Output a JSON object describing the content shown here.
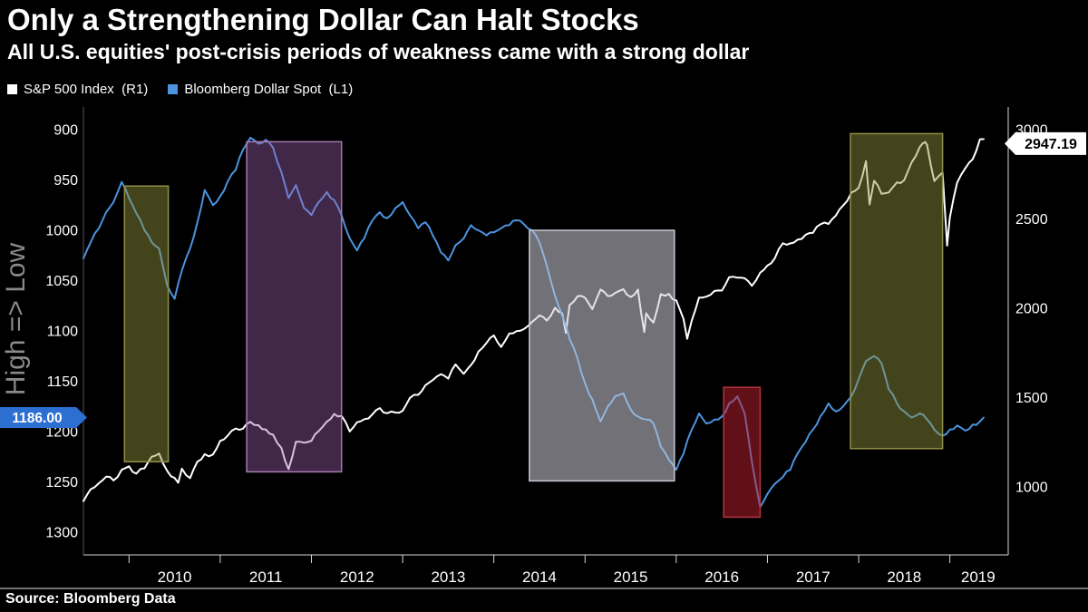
{
  "header": {
    "title": "Only a Strengthening Dollar Can Halt Stocks",
    "subtitle": "All U.S. equities' post-crisis periods of weakness came with a strong dollar"
  },
  "legend": {
    "items": [
      {
        "label": "S&P 500 Index  (R1)",
        "color": "#ffffff"
      },
      {
        "label": "Bloomberg Dollar Spot  (L1)",
        "color": "#4a94e0"
      }
    ]
  },
  "source": "Source: Bloomberg Data",
  "chart_data": {
    "type": "line",
    "title": "Only a Strengthening Dollar Can Halt Stocks",
    "subtitle": "All U.S. equities' post-crisis periods of weakness came with a strong dollar",
    "background": "#000000",
    "grid": false,
    "legend_position": "top-left",
    "x_domain": [
      2009.5,
      2019.62
    ],
    "x_tick_years": [
      2010,
      2011,
      2012,
      2013,
      2014,
      2015,
      2016,
      2017,
      2018,
      2019
    ],
    "left_axis": {
      "series": "Bloomberg Dollar Spot (L1)",
      "label": "High => Low",
      "inverted": true,
      "domain": [
        900,
        1300
      ],
      "ticks": [
        900,
        950,
        1000,
        1050,
        1100,
        1150,
        1200,
        1250,
        1300
      ],
      "badge": {
        "value": "1186.00",
        "bg": "#2d6fd1",
        "fg": "#ffffff"
      }
    },
    "right_axis": {
      "series": "S&P 500 Index (R1)",
      "domain": [
        1000,
        3000
      ],
      "ticks": [
        3000,
        2500,
        2000,
        1500,
        1000
      ],
      "badge": {
        "value": "2947.19",
        "bg": "#ffffff",
        "fg": "#000000"
      }
    },
    "series": [
      {
        "name": "S&P 500 Index (R1)",
        "axis": "right",
        "color": "#ffffff",
        "points": [
          [
            2009.5,
            920
          ],
          [
            2009.58,
            987
          ],
          [
            2009.67,
            1021
          ],
          [
            2009.75,
            1057
          ],
          [
            2009.83,
            1036
          ],
          [
            2009.92,
            1096
          ],
          [
            2010.0,
            1115
          ],
          [
            2010.08,
            1074
          ],
          [
            2010.17,
            1104
          ],
          [
            2010.25,
            1169
          ],
          [
            2010.33,
            1187
          ],
          [
            2010.42,
            1089
          ],
          [
            2010.54,
            1023
          ],
          [
            2010.58,
            1102
          ],
          [
            2010.67,
            1049
          ],
          [
            2010.75,
            1141
          ],
          [
            2010.83,
            1183
          ],
          [
            2010.92,
            1181
          ],
          [
            2011.0,
            1258
          ],
          [
            2011.08,
            1286
          ],
          [
            2011.17,
            1327
          ],
          [
            2011.25,
            1326
          ],
          [
            2011.33,
            1364
          ],
          [
            2011.42,
            1345
          ],
          [
            2011.5,
            1321
          ],
          [
            2011.58,
            1292
          ],
          [
            2011.67,
            1219
          ],
          [
            2011.75,
            1099
          ],
          [
            2011.83,
            1253
          ],
          [
            2011.92,
            1247
          ],
          [
            2012.0,
            1258
          ],
          [
            2012.08,
            1312
          ],
          [
            2012.17,
            1366
          ],
          [
            2012.25,
            1408
          ],
          [
            2012.33,
            1398
          ],
          [
            2012.42,
            1310
          ],
          [
            2012.5,
            1362
          ],
          [
            2012.58,
            1379
          ],
          [
            2012.67,
            1407
          ],
          [
            2012.75,
            1441
          ],
          [
            2012.83,
            1412
          ],
          [
            2012.92,
            1416
          ],
          [
            2013.0,
            1426
          ],
          [
            2013.08,
            1498
          ],
          [
            2013.17,
            1515
          ],
          [
            2013.25,
            1569
          ],
          [
            2013.33,
            1598
          ],
          [
            2013.42,
            1631
          ],
          [
            2013.5,
            1606
          ],
          [
            2013.58,
            1686
          ],
          [
            2013.67,
            1633
          ],
          [
            2013.75,
            1682
          ],
          [
            2013.83,
            1757
          ],
          [
            2013.92,
            1806
          ],
          [
            2014.0,
            1848
          ],
          [
            2014.08,
            1783
          ],
          [
            2014.17,
            1859
          ],
          [
            2014.25,
            1872
          ],
          [
            2014.33,
            1884
          ],
          [
            2014.42,
            1924
          ],
          [
            2014.5,
            1960
          ],
          [
            2014.58,
            1931
          ],
          [
            2014.67,
            2003
          ],
          [
            2014.75,
            1972
          ],
          [
            2014.79,
            1862
          ],
          [
            2014.83,
            2018
          ],
          [
            2014.92,
            2068
          ],
          [
            2015.0,
            2059
          ],
          [
            2015.08,
            1995
          ],
          [
            2015.17,
            2105
          ],
          [
            2015.25,
            2068
          ],
          [
            2015.33,
            2086
          ],
          [
            2015.42,
            2107
          ],
          [
            2015.5,
            2063
          ],
          [
            2015.58,
            2104
          ],
          [
            2015.65,
            1867
          ],
          [
            2015.67,
            1972
          ],
          [
            2015.75,
            1920
          ],
          [
            2015.83,
            2079
          ],
          [
            2015.92,
            2080
          ],
          [
            2016.0,
            2044
          ],
          [
            2016.08,
            1940
          ],
          [
            2016.12,
            1829
          ],
          [
            2016.17,
            1932
          ],
          [
            2016.25,
            2060
          ],
          [
            2016.33,
            2065
          ],
          [
            2016.42,
            2097
          ],
          [
            2016.5,
            2099
          ],
          [
            2016.58,
            2174
          ],
          [
            2016.67,
            2171
          ],
          [
            2016.75,
            2168
          ],
          [
            2016.83,
            2126
          ],
          [
            2016.92,
            2199
          ],
          [
            2017.0,
            2239
          ],
          [
            2017.08,
            2279
          ],
          [
            2017.17,
            2364
          ],
          [
            2017.25,
            2363
          ],
          [
            2017.33,
            2384
          ],
          [
            2017.42,
            2412
          ],
          [
            2017.5,
            2423
          ],
          [
            2017.58,
            2470
          ],
          [
            2017.67,
            2472
          ],
          [
            2017.75,
            2519
          ],
          [
            2017.83,
            2575
          ],
          [
            2017.92,
            2648
          ],
          [
            2018.0,
            2674
          ],
          [
            2018.08,
            2824
          ],
          [
            2018.12,
            2581
          ],
          [
            2018.17,
            2714
          ],
          [
            2018.25,
            2641
          ],
          [
            2018.33,
            2648
          ],
          [
            2018.42,
            2705
          ],
          [
            2018.5,
            2718
          ],
          [
            2018.58,
            2816
          ],
          [
            2018.67,
            2902
          ],
          [
            2018.73,
            2931
          ],
          [
            2018.75,
            2914
          ],
          [
            2018.83,
            2712
          ],
          [
            2018.92,
            2760
          ],
          [
            2018.97,
            2351
          ],
          [
            2019.0,
            2507
          ],
          [
            2019.08,
            2704
          ],
          [
            2019.17,
            2784
          ],
          [
            2019.25,
            2834
          ],
          [
            2019.33,
            2946
          ],
          [
            2019.37,
            2947.19
          ]
        ]
      },
      {
        "name": "Bloomberg Dollar Spot (L1)",
        "axis": "left",
        "color": "#4a94e0",
        "points": [
          [
            2009.5,
            1028
          ],
          [
            2009.58,
            1012
          ],
          [
            2009.67,
            998
          ],
          [
            2009.75,
            982
          ],
          [
            2009.83,
            972
          ],
          [
            2009.92,
            952
          ],
          [
            2010.0,
            968
          ],
          [
            2010.08,
            983
          ],
          [
            2010.17,
            1000
          ],
          [
            2010.25,
            1012
          ],
          [
            2010.33,
            1018
          ],
          [
            2010.42,
            1055
          ],
          [
            2010.5,
            1068
          ],
          [
            2010.58,
            1040
          ],
          [
            2010.67,
            1018
          ],
          [
            2010.75,
            992
          ],
          [
            2010.83,
            960
          ],
          [
            2010.92,
            975
          ],
          [
            2011.0,
            966
          ],
          [
            2011.08,
            952
          ],
          [
            2011.17,
            940
          ],
          [
            2011.25,
            920
          ],
          [
            2011.33,
            908
          ],
          [
            2011.42,
            914
          ],
          [
            2011.5,
            910
          ],
          [
            2011.58,
            918
          ],
          [
            2011.67,
            942
          ],
          [
            2011.75,
            968
          ],
          [
            2011.83,
            955
          ],
          [
            2011.92,
            978
          ],
          [
            2012.0,
            985
          ],
          [
            2012.08,
            972
          ],
          [
            2012.17,
            962
          ],
          [
            2012.25,
            970
          ],
          [
            2012.33,
            985
          ],
          [
            2012.42,
            1008
          ],
          [
            2012.5,
            1020
          ],
          [
            2012.58,
            1008
          ],
          [
            2012.67,
            990
          ],
          [
            2012.75,
            982
          ],
          [
            2012.83,
            988
          ],
          [
            2012.92,
            978
          ],
          [
            2013.0,
            972
          ],
          [
            2013.08,
            985
          ],
          [
            2013.17,
            998
          ],
          [
            2013.25,
            992
          ],
          [
            2013.33,
            1005
          ],
          [
            2013.42,
            1022
          ],
          [
            2013.5,
            1030
          ],
          [
            2013.58,
            1015
          ],
          [
            2013.67,
            1008
          ],
          [
            2013.75,
            995
          ],
          [
            2013.83,
            1000
          ],
          [
            2013.92,
            1005
          ],
          [
            2014.0,
            1002
          ],
          [
            2014.08,
            998
          ],
          [
            2014.17,
            995
          ],
          [
            2014.25,
            990
          ],
          [
            2014.33,
            994
          ],
          [
            2014.42,
            1000
          ],
          [
            2014.5,
            1012
          ],
          [
            2014.58,
            1035
          ],
          [
            2014.67,
            1065
          ],
          [
            2014.75,
            1085
          ],
          [
            2014.83,
            1108
          ],
          [
            2014.92,
            1128
          ],
          [
            2015.0,
            1152
          ],
          [
            2015.08,
            1168
          ],
          [
            2015.17,
            1190
          ],
          [
            2015.25,
            1175
          ],
          [
            2015.33,
            1165
          ],
          [
            2015.42,
            1162
          ],
          [
            2015.5,
            1178
          ],
          [
            2015.58,
            1185
          ],
          [
            2015.67,
            1188
          ],
          [
            2015.75,
            1192
          ],
          [
            2015.83,
            1215
          ],
          [
            2015.92,
            1228
          ],
          [
            2016.0,
            1238
          ],
          [
            2016.08,
            1222
          ],
          [
            2016.17,
            1198
          ],
          [
            2016.25,
            1182
          ],
          [
            2016.33,
            1192
          ],
          [
            2016.42,
            1188
          ],
          [
            2016.5,
            1185
          ],
          [
            2016.58,
            1172
          ],
          [
            2016.67,
            1165
          ],
          [
            2016.75,
            1182
          ],
          [
            2016.83,
            1230
          ],
          [
            2016.92,
            1275
          ],
          [
            2017.0,
            1262
          ],
          [
            2017.08,
            1252
          ],
          [
            2017.17,
            1245
          ],
          [
            2017.25,
            1238
          ],
          [
            2017.33,
            1222
          ],
          [
            2017.42,
            1210
          ],
          [
            2017.5,
            1198
          ],
          [
            2017.58,
            1185
          ],
          [
            2017.67,
            1172
          ],
          [
            2017.75,
            1180
          ],
          [
            2017.83,
            1175
          ],
          [
            2017.92,
            1165
          ],
          [
            2018.0,
            1148
          ],
          [
            2018.08,
            1130
          ],
          [
            2018.17,
            1125
          ],
          [
            2018.25,
            1132
          ],
          [
            2018.33,
            1158
          ],
          [
            2018.42,
            1172
          ],
          [
            2018.5,
            1180
          ],
          [
            2018.58,
            1186
          ],
          [
            2018.67,
            1182
          ],
          [
            2018.75,
            1188
          ],
          [
            2018.83,
            1198
          ],
          [
            2018.92,
            1204
          ],
          [
            2019.0,
            1198
          ],
          [
            2019.08,
            1194
          ],
          [
            2019.17,
            1199
          ],
          [
            2019.25,
            1193
          ],
          [
            2019.33,
            1190
          ],
          [
            2019.37,
            1186
          ]
        ]
      }
    ],
    "highlight_regions": [
      {
        "x0": 2009.95,
        "x1": 2010.43,
        "top": 956,
        "bottom": 1230,
        "fill": "rgba(150,150,62,0.45)",
        "stroke": "#8f8f4a"
      },
      {
        "x0": 2011.29,
        "x1": 2012.33,
        "top": 912,
        "bottom": 1240,
        "fill": "rgba(165,100,180,0.40)",
        "stroke": "#a778b2"
      },
      {
        "x0": 2014.39,
        "x1": 2015.98,
        "top": 1000,
        "bottom": 1249,
        "fill": "rgba(205,205,216,0.55)",
        "stroke": "#c9c9d4"
      },
      {
        "x0": 2016.52,
        "x1": 2016.92,
        "top": 1156,
        "bottom": 1285,
        "fill": "rgba(195,32,48,0.50)",
        "stroke": "#b23540"
      },
      {
        "x0": 2017.91,
        "x1": 2018.92,
        "top": 904,
        "bottom": 1217,
        "fill": "rgba(150,150,62,0.45)",
        "stroke": "#8f8f4a"
      }
    ]
  }
}
